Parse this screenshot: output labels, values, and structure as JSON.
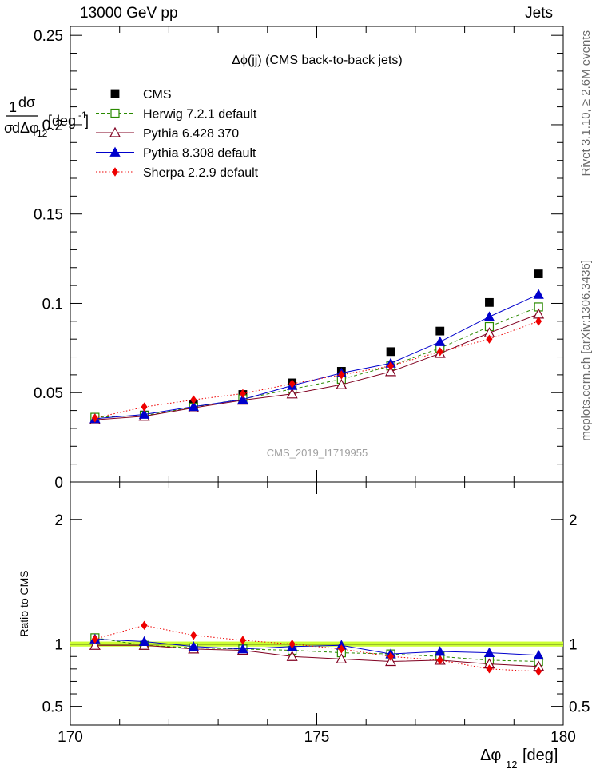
{
  "header": {
    "energy": "13000 GeV pp",
    "category": "Jets"
  },
  "side": {
    "rivet": "Rivet 3.1.10, ≥ 2.6M events",
    "mcplots": "mcplots.cern.ch [arXiv:1306.3436]"
  },
  "chart_data": {
    "type": "scatter",
    "title": "Δϕ(jj) (CMS back-to-back jets)",
    "watermark": "CMS_2019_I1719955",
    "xlabel": "Δϕ 12 [deg]",
    "ylabel": "1/σ dσ/dΔϕ 12 [deg⁻¹]",
    "ratio_ylabel": "Ratio to CMS",
    "xlim": [
      170,
      180
    ],
    "ylim": [
      0,
      0.255
    ],
    "ratio_ylim": [
      0.35,
      2.3
    ],
    "x_ticks": [
      "170",
      "175",
      "180"
    ],
    "y_ticks": [
      "0",
      "0.05",
      "0.1",
      "0.15",
      "0.2",
      "0.25"
    ],
    "ratio_ticks": [
      "0.5",
      "1",
      "2"
    ],
    "x": [
      170.5,
      171.5,
      172.5,
      173.5,
      174.5,
      175.5,
      176.5,
      177.5,
      178.5,
      179.5
    ],
    "series": [
      {
        "name": "CMS",
        "color": "#000000",
        "marker": "square-filled",
        "values": [
          0.035,
          0.0375,
          0.0435,
          0.049,
          0.0555,
          0.062,
          0.073,
          0.0845,
          0.1005,
          0.1165
        ]
      },
      {
        "name": "Herwig 7.2.1 default",
        "color": "#2a8a00",
        "marker": "square-open",
        "dash": "4,3",
        "values": [
          0.0362,
          0.0372,
          0.0418,
          0.0465,
          0.052,
          0.0575,
          0.065,
          0.075,
          0.087,
          0.098
        ]
      },
      {
        "name": "Pythia 6.428 370",
        "color": "#800020",
        "marker": "triangle-open",
        "values": [
          0.0348,
          0.0368,
          0.0415,
          0.0458,
          0.0493,
          0.0545,
          0.0618,
          0.072,
          0.0835,
          0.094
        ]
      },
      {
        "name": "Pythia 8.308 default",
        "color": "#0000cc",
        "marker": "triangle-filled",
        "values": [
          0.0354,
          0.0378,
          0.0422,
          0.0462,
          0.054,
          0.061,
          0.0665,
          0.0785,
          0.0925,
          0.105
        ]
      },
      {
        "name": "Sherpa 2.2.9 default",
        "color": "#ee0000",
        "marker": "diamond-filled",
        "dash": "1.5,2.5",
        "values": [
          0.0358,
          0.042,
          0.046,
          0.0495,
          0.055,
          0.06,
          0.065,
          0.073,
          0.08,
          0.09
        ]
      }
    ],
    "ratio_series": [
      {
        "name": "Herwig 7.2.1 default",
        "values": [
          1.05,
          0.99,
          0.97,
          0.96,
          0.95,
          0.93,
          0.92,
          0.9,
          0.87,
          0.86
        ]
      },
      {
        "name": "Pythia 6.428 370",
        "values": [
          0.99,
          0.99,
          0.96,
          0.95,
          0.9,
          0.88,
          0.86,
          0.87,
          0.84,
          0.82
        ]
      },
      {
        "name": "Pythia 8.308 default",
        "values": [
          1.04,
          1.02,
          0.98,
          0.96,
          0.98,
          0.99,
          0.92,
          0.94,
          0.93,
          0.91
        ]
      },
      {
        "name": "Sherpa 2.2.9 default",
        "values": [
          1.04,
          1.15,
          1.07,
          1.03,
          1.0,
          0.96,
          0.9,
          0.87,
          0.8,
          0.78
        ]
      }
    ],
    "reference_band": {
      "center": 1.0,
      "low": 0.98,
      "high": 1.02,
      "color": "#ccff33"
    },
    "legend_position": "top-left"
  }
}
